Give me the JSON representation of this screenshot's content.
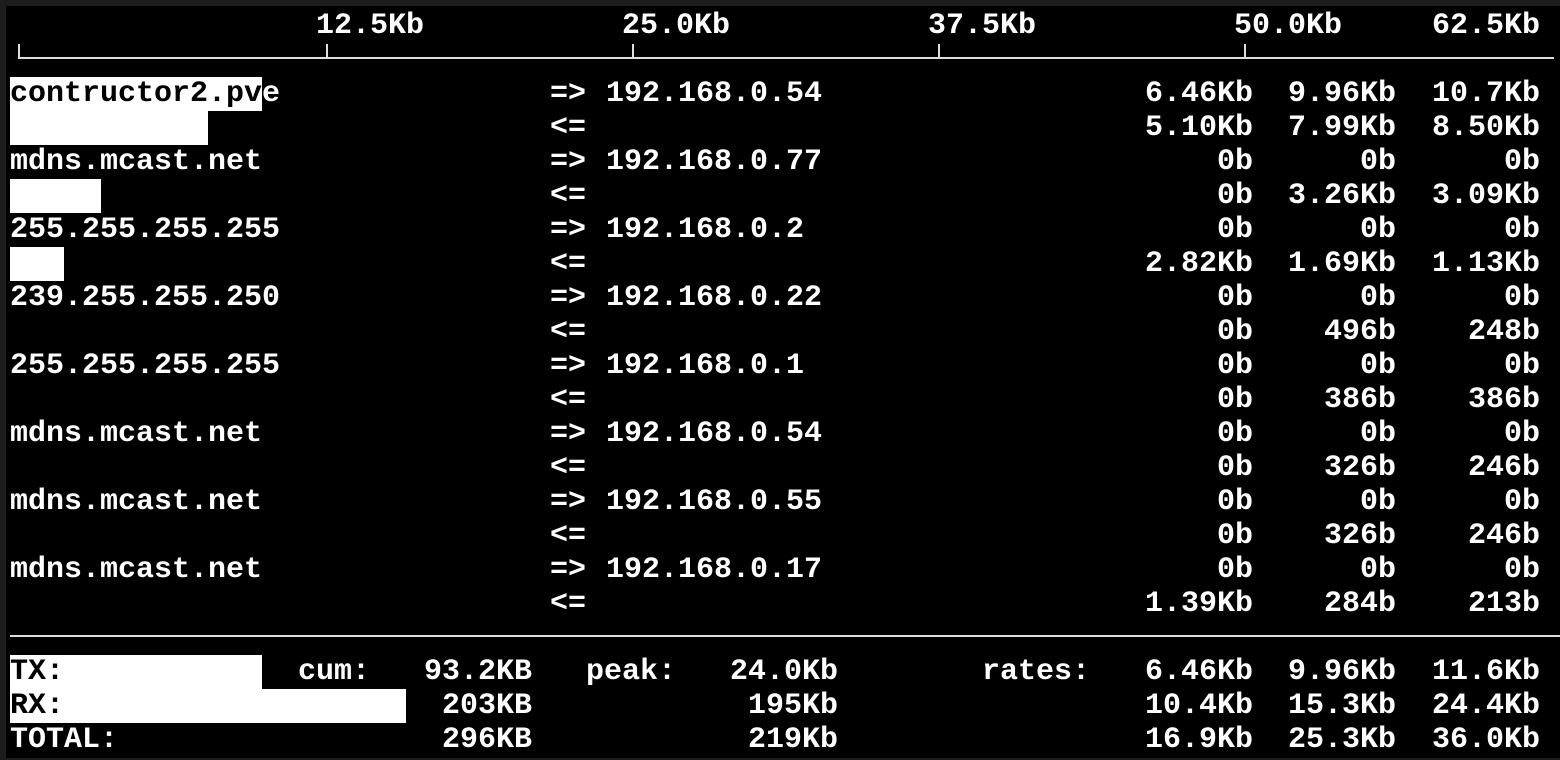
{
  "scale": {
    "min_label": "",
    "ticks": [
      "12.5Kb",
      "25.0Kb",
      "37.5Kb",
      "50.0Kb",
      "62.5Kb"
    ]
  },
  "flows": [
    {
      "host": "contructor2.pve",
      "peer": "192.168.0.54",
      "tx": [
        "6.46Kb",
        "9.96Kb",
        "10.7Kb"
      ],
      "rx": [
        "5.10Kb",
        "7.99Kb",
        "8.50Kb"
      ],
      "tx_bar": 0.164,
      "rx_bar": 0.129
    },
    {
      "host": "mdns.mcast.net",
      "peer": "192.168.0.77",
      "tx": [
        "0b",
        "0b",
        "0b"
      ],
      "rx": [
        "0b",
        "3.26Kb",
        "3.09Kb"
      ],
      "tx_bar": 0,
      "rx_bar": 0.059
    },
    {
      "host": "255.255.255.255",
      "peer": "192.168.0.2",
      "tx": [
        "0b",
        "0b",
        "0b"
      ],
      "rx": [
        "2.82Kb",
        "1.69Kb",
        "1.13Kb"
      ],
      "tx_bar": 0,
      "rx_bar": 0.035
    },
    {
      "host": "239.255.255.250",
      "peer": "192.168.0.22",
      "tx": [
        "0b",
        "0b",
        "0b"
      ],
      "rx": [
        "0b",
        "496b",
        "248b"
      ],
      "tx_bar": 0,
      "rx_bar": 0
    },
    {
      "host": "255.255.255.255",
      "peer": "192.168.0.1",
      "tx": [
        "0b",
        "0b",
        "0b"
      ],
      "rx": [
        "0b",
        "386b",
        "386b"
      ],
      "tx_bar": 0,
      "rx_bar": 0
    },
    {
      "host": "mdns.mcast.net",
      "peer": "192.168.0.54",
      "tx": [
        "0b",
        "0b",
        "0b"
      ],
      "rx": [
        "0b",
        "326b",
        "246b"
      ],
      "tx_bar": 0,
      "rx_bar": 0
    },
    {
      "host": "mdns.mcast.net",
      "peer": "192.168.0.55",
      "tx": [
        "0b",
        "0b",
        "0b"
      ],
      "rx": [
        "0b",
        "326b",
        "246b"
      ],
      "tx_bar": 0,
      "rx_bar": 0
    },
    {
      "host": "mdns.mcast.net",
      "peer": "192.168.0.17",
      "tx": [
        "0b",
        "0b",
        "0b"
      ],
      "rx": [
        "1.39Kb",
        "284b",
        "213b"
      ],
      "tx_bar": 0,
      "rx_bar": 0
    }
  ],
  "arrows": {
    "tx": "=>",
    "rx": "<="
  },
  "totals": {
    "cum_label": "cum:",
    "peak_label": "peak:",
    "rates_label": "rates:",
    "tx": {
      "label": "TX:",
      "cum": "93.2KB",
      "peak": "24.0Kb",
      "rates": [
        "6.46Kb",
        "9.96Kb",
        "11.6Kb"
      ],
      "bar": 0.164
    },
    "rx": {
      "label": "RX:",
      "cum": "203KB",
      "peak": "195Kb",
      "rates": [
        "10.4Kb",
        "15.3Kb",
        "24.4Kb"
      ],
      "bar": 0.258
    },
    "total": {
      "label": "TOTAL:",
      "cum": "296KB",
      "peak": "219Kb",
      "rates": [
        "16.9Kb",
        "25.3Kb",
        "36.0Kb"
      ]
    }
  }
}
